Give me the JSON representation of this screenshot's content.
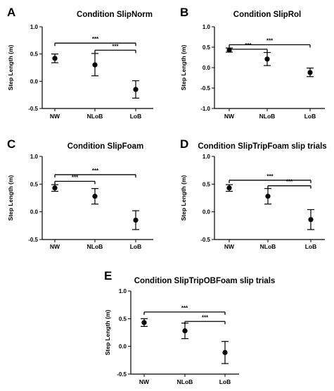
{
  "chart_data": [
    {
      "type": "scatter",
      "panel_label": "A",
      "title": "Condition SlipNorm",
      "ylabel": "Step Length (m)",
      "categories": [
        "NW",
        "NLoB",
        "LoB"
      ],
      "means": [
        0.42,
        0.3,
        -0.15
      ],
      "err_low": [
        0.34,
        0.1,
        -0.31
      ],
      "err_high": [
        0.5,
        0.51,
        0.01
      ],
      "ylim": [
        -0.5,
        1.0
      ],
      "yticks": [
        "1.0",
        "0.5",
        "0.0",
        "-0.5"
      ],
      "ytick_values": [
        1.0,
        0.5,
        0.0,
        -0.5
      ],
      "significance": [
        {
          "from": "NW",
          "to": "LoB",
          "label": "***",
          "y": 0.7
        },
        {
          "from": "NLoB",
          "to": "LoB",
          "label": "***",
          "y": 0.57
        }
      ]
    },
    {
      "type": "scatter",
      "panel_label": "B",
      "title": "Condition SlipRol",
      "ylabel": "Step Length (m)",
      "categories": [
        "NW",
        "NLoB",
        "LoB"
      ],
      "means": [
        0.43,
        0.21,
        -0.12
      ],
      "err_low": [
        0.38,
        0.05,
        -0.22
      ],
      "err_high": [
        0.48,
        0.37,
        -0.01
      ],
      "ylim": [
        -1.0,
        1.0
      ],
      "yticks": [
        "1.0",
        "0.5",
        "0.0",
        "-0.5",
        "-1.0"
      ],
      "ytick_values": [
        1.0,
        0.5,
        0.0,
        -0.5,
        -1.0
      ],
      "significance": [
        {
          "from": "NW",
          "to": "LoB",
          "label": "***",
          "y": 0.56
        },
        {
          "from": "NW",
          "to": "NLoB",
          "label": "***",
          "y": 0.45
        }
      ]
    },
    {
      "type": "scatter",
      "panel_label": "C",
      "title": "Condition SlipFoam",
      "ylabel": "Step Length (m)",
      "categories": [
        "NW",
        "NLoB",
        "LoB"
      ],
      "means": [
        0.43,
        0.28,
        -0.15
      ],
      "err_low": [
        0.37,
        0.14,
        -0.32
      ],
      "err_high": [
        0.49,
        0.42,
        0.02
      ],
      "ylim": [
        -0.5,
        1.0
      ],
      "yticks": [
        "1.0",
        "0.5",
        "0.0",
        "-0.5"
      ],
      "ytick_values": [
        1.0,
        0.5,
        0.0,
        -0.5
      ],
      "significance": [
        {
          "from": "NW",
          "to": "LoB",
          "label": "***",
          "y": 0.67
        },
        {
          "from": "NW",
          "to": "NLoB",
          "label": "***",
          "y": 0.55
        }
      ]
    },
    {
      "type": "scatter",
      "panel_label": "D",
      "title": "Condition SlipTripFoam slip trials",
      "ylabel": "Step Length (m)",
      "categories": [
        "NW",
        "NLoB",
        "LoB"
      ],
      "means": [
        0.43,
        0.28,
        -0.14
      ],
      "err_low": [
        0.37,
        0.14,
        -0.32
      ],
      "err_high": [
        0.49,
        0.42,
        0.04
      ],
      "ylim": [
        -0.5,
        1.0
      ],
      "yticks": [
        "1.0",
        "0.5",
        "0.0",
        "-0.5"
      ],
      "ytick_values": [
        1.0,
        0.5,
        0.0,
        -0.5
      ],
      "significance": [
        {
          "from": "NW",
          "to": "LoB",
          "label": "***",
          "y": 0.57
        },
        {
          "from": "NLoB",
          "to": "LoB",
          "label": "***",
          "y": 0.47
        }
      ]
    },
    {
      "type": "scatter",
      "panel_label": "E",
      "title": "Condition SlipTripOBFoam slip trials",
      "ylabel": "Step Length (m)",
      "categories": [
        "NW",
        "NLoB",
        "LoB"
      ],
      "means": [
        0.43,
        0.28,
        -0.11
      ],
      "err_low": [
        0.36,
        0.14,
        -0.31
      ],
      "err_high": [
        0.5,
        0.42,
        0.09
      ],
      "ylim": [
        -0.5,
        1.0
      ],
      "yticks": [
        "1.0",
        "0.5",
        "0.0",
        "-0.5"
      ],
      "ytick_values": [
        1.0,
        0.5,
        0.0,
        -0.5
      ],
      "significance": [
        {
          "from": "NW",
          "to": "LoB",
          "label": "***",
          "y": 0.62
        },
        {
          "from": "NLoB",
          "to": "LoB",
          "label": "***",
          "y": 0.45
        }
      ]
    }
  ]
}
